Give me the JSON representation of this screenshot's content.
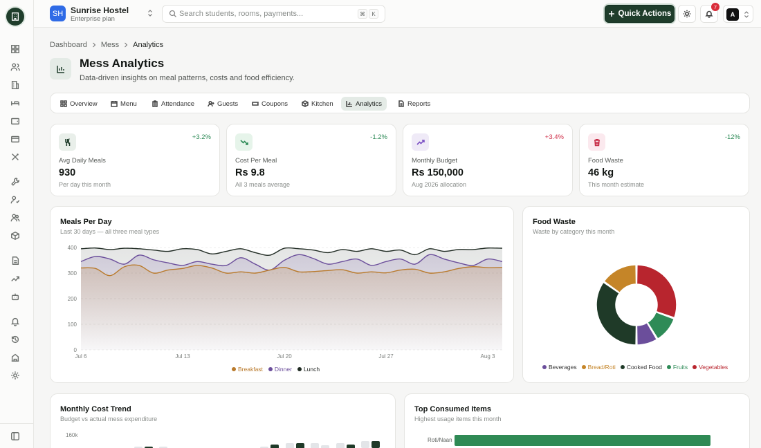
{
  "header": {
    "org_initials": "SH",
    "org_name": "Sunrise Hostel",
    "org_plan": "Enterprise plan",
    "search_placeholder": "Search students, rooms, payments...",
    "kbd_1": "⌘",
    "kbd_2": "K",
    "quick_actions": "Quick Actions",
    "notif_count": "7",
    "user_initial": "A"
  },
  "breadcrumb": [
    "Dashboard",
    "Mess",
    "Analytics"
  ],
  "page": {
    "title": "Mess Analytics",
    "subtitle": "Data-driven insights on meal patterns, costs and food efficiency."
  },
  "tabs": [
    {
      "label": "Overview",
      "icon": "grid-icon"
    },
    {
      "label": "Menu",
      "icon": "calendar-icon"
    },
    {
      "label": "Attendance",
      "icon": "clipboard-icon"
    },
    {
      "label": "Guests",
      "icon": "user-plus-icon"
    },
    {
      "label": "Coupons",
      "icon": "ticket-icon"
    },
    {
      "label": "Kitchen",
      "icon": "box-icon"
    },
    {
      "label": "Analytics",
      "icon": "bar-chart-icon",
      "active": true
    },
    {
      "label": "Reports",
      "icon": "file-icon"
    }
  ],
  "kpis": [
    {
      "label": "Avg Daily Meals",
      "value": "930",
      "sub": "Per day this month",
      "delta": "+3.2%",
      "delta_color": "#2e8b57",
      "icon": "utensils-icon",
      "icon_bg": "#e9efea",
      "icon_color": "#1f3d2b"
    },
    {
      "label": "Cost Per Meal",
      "value": "Rs 9.8",
      "sub": "All 3 meals average",
      "delta": "-1.2%",
      "delta_color": "#2e8b57",
      "icon": "trending-down-icon",
      "icon_bg": "#e6f4ea",
      "icon_color": "#2e8b57"
    },
    {
      "label": "Monthly Budget",
      "value": "Rs 150,000",
      "sub": "Aug 2026 allocation",
      "delta": "+3.4%",
      "delta_color": "#d0304a",
      "icon": "trending-up-icon",
      "icon_bg": "#efeaf7",
      "icon_color": "#7a4fc4"
    },
    {
      "label": "Food Waste",
      "value": "46 kg",
      "sub": "This month estimate",
      "delta": "-12%",
      "delta_color": "#2e8b57",
      "icon": "trash-icon",
      "icon_bg": "#fbe9ee",
      "icon_color": "#c8304a"
    }
  ],
  "meals_card": {
    "title": "Meals Per Day",
    "subtitle": "Last 30 days — all three meal types"
  },
  "waste_card": {
    "title": "Food Waste",
    "subtitle": "Waste by category this month"
  },
  "cost_card": {
    "title": "Monthly Cost Trend",
    "subtitle": "Budget vs actual mess expenditure",
    "y_top_label": "160k"
  },
  "top_card": {
    "title": "Top Consumed Items",
    "subtitle": "Highest usage items this month"
  },
  "colors": {
    "breakfast": "#b97a2c",
    "dinner": "#6b4e9b",
    "lunch": "#1f2a22",
    "accent": "#1f3d2b"
  },
  "chart_data": [
    {
      "type": "line",
      "title": "Meals Per Day",
      "subtitle": "Last 30 days — all three meal types",
      "x": [
        "Jul 6",
        "Jul 7",
        "Jul 8",
        "Jul 9",
        "Jul 10",
        "Jul 11",
        "Jul 12",
        "Jul 13",
        "Jul 14",
        "Jul 15",
        "Jul 16",
        "Jul 17",
        "Jul 18",
        "Jul 19",
        "Jul 20",
        "Jul 21",
        "Jul 22",
        "Jul 23",
        "Jul 24",
        "Jul 25",
        "Jul 26",
        "Jul 27",
        "Jul 28",
        "Jul 29",
        "Jul 30",
        "Jul 31",
        "Aug 1",
        "Aug 2",
        "Aug 3",
        "Aug 4"
      ],
      "x_ticks": [
        "Jul 6",
        "Jul 13",
        "Jul 20",
        "Jul 27",
        "Aug 3"
      ],
      "y_ticks": [
        0,
        100,
        200,
        300,
        400
      ],
      "ylim": [
        0,
        400
      ],
      "legend": "bottom",
      "series": [
        {
          "name": "Breakfast",
          "values": [
            320,
            318,
            290,
            325,
            330,
            300,
            312,
            318,
            330,
            320,
            300,
            305,
            300,
            312,
            322,
            305,
            306,
            310,
            313,
            300,
            305,
            301,
            312,
            315,
            300,
            305,
            318,
            325,
            321,
            322
          ]
        },
        {
          "name": "Dinner",
          "values": [
            345,
            365,
            355,
            335,
            370,
            352,
            340,
            330,
            345,
            335,
            330,
            360,
            335,
            312,
            350,
            372,
            357,
            335,
            345,
            355,
            330,
            345,
            355,
            335,
            372,
            355,
            340,
            330,
            355,
            345
          ]
        },
        {
          "name": "Lunch",
          "values": [
            395,
            398,
            392,
            397,
            395,
            390,
            385,
            395,
            392,
            375,
            385,
            395,
            380,
            370,
            397,
            395,
            390,
            380,
            392,
            385,
            395,
            385,
            390,
            372,
            395,
            385,
            392,
            392,
            398,
            397
          ]
        }
      ]
    },
    {
      "type": "pie",
      "title": "Food Waste",
      "subtitle": "Waste by category this month",
      "legend": "bottom",
      "categories": [
        "Beverages",
        "Bread/Roti",
        "Cooked Food",
        "Fruits",
        "Vegetables"
      ],
      "values": [
        4,
        7,
        16,
        5,
        14
      ],
      "colors": [
        "#6b4e9b",
        "#c58528",
        "#1f3a28",
        "#2e8b57",
        "#b8252e"
      ]
    },
    {
      "type": "bar",
      "title": "Monthly Cost Trend",
      "subtitle": "Budget vs actual mess expenditure",
      "y_top_label": "160k"
    },
    {
      "type": "bar",
      "title": "Top Consumed Items",
      "subtitle": "Highest usage items this month",
      "categories": [
        "Roti/Naan"
      ]
    }
  ]
}
